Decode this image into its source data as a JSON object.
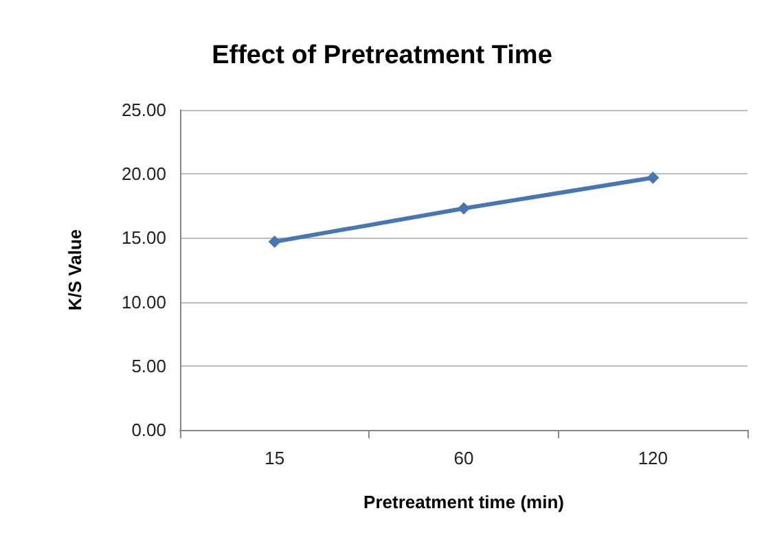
{
  "chart_data": {
    "type": "line",
    "title": "Effect of Pretreatment Time",
    "xlabel": "Pretreatment time (min)",
    "ylabel": "K/S Value",
    "categories": [
      "15",
      "60",
      "120"
    ],
    "series": [
      {
        "color": "#4a76b0",
        "values": [
          14.7,
          17.3,
          19.7
        ]
      }
    ],
    "ylim": [
      0,
      25
    ],
    "yticks": [
      {
        "value": 0,
        "label": "0.00"
      },
      {
        "value": 5,
        "label": "5.00"
      },
      {
        "value": 10,
        "label": "10.00"
      },
      {
        "value": 15,
        "label": "15.00"
      },
      {
        "value": 20,
        "label": "20.00"
      },
      {
        "value": 25,
        "label": "25.00"
      }
    ],
    "grid": "y",
    "marker": "diamond",
    "line_style": "solid"
  }
}
